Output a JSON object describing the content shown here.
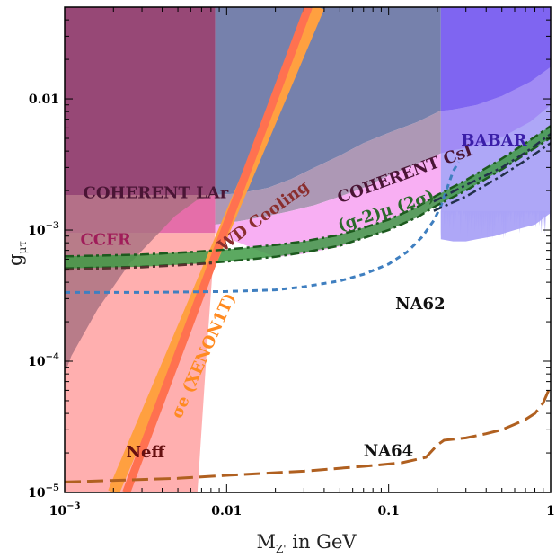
{
  "chart_data": {
    "type": "area",
    "xlabel": "M",
    "xlabel_sub": "Z'",
    "xlabel_suffix": " in GeV",
    "ylabel": "g",
    "ylabel_sub": "μτ",
    "xscale": "log",
    "yscale": "log",
    "xlim": [
      0.001,
      1
    ],
    "ylim": [
      1e-05,
      0.05
    ],
    "x_ticks": [
      {
        "v": 0.001,
        "base": "10",
        "exp": "−3"
      },
      {
        "v": 0.01,
        "text": "0.01"
      },
      {
        "v": 0.1,
        "text": "0.1"
      },
      {
        "v": 1,
        "text": "1"
      }
    ],
    "y_ticks": [
      {
        "v": 1e-05,
        "base": "10",
        "exp": "−5"
      },
      {
        "v": 0.0001,
        "base": "10",
        "exp": "−4"
      },
      {
        "v": 0.001,
        "base": "10",
        "exp": "−3"
      },
      {
        "v": 0.01,
        "text": "0.01"
      }
    ],
    "regions": [
      {
        "name": "COHERENT LAr",
        "color": "#7a1450",
        "opacity": 0.78,
        "points": [
          [
            0.001,
            0.05
          ],
          [
            0.0085,
            0.05
          ],
          [
            0.0085,
            0.00185
          ],
          [
            0.001,
            0.00185
          ]
        ]
      },
      {
        "name": "CCFR",
        "color": "#e0559a",
        "opacity": 0.85,
        "points": [
          [
            0.001,
            0.00185
          ],
          [
            0.0085,
            0.00185
          ],
          [
            0.0085,
            0.00095
          ],
          [
            0.001,
            0.00095
          ]
        ]
      },
      {
        "name": "N_eff",
        "color": "#ff9e9e",
        "opacity": 0.82,
        "points": [
          [
            0.001,
            0.00095
          ],
          [
            0.0085,
            0.00095
          ],
          [
            0.0075,
            0.00011
          ],
          [
            0.0066,
            1e-05
          ],
          [
            0.001,
            1e-05
          ]
        ]
      },
      {
        "name": "WD Cooling",
        "color": "#a87080",
        "opacity": 0.82,
        "points": [
          [
            0.001,
            8e-05
          ],
          [
            0.0011,
            0.00011
          ],
          [
            0.0016,
            0.00025
          ],
          [
            0.0025,
            0.00055
          ],
          [
            0.0035,
            0.00085
          ],
          [
            0.0048,
            0.00128
          ],
          [
            0.0065,
            0.00168
          ],
          [
            0.0085,
            0.00185
          ],
          [
            0.001,
            0.00185
          ]
        ]
      },
      {
        "name": "COHERENT CsI",
        "color": "#6f7aa8",
        "opacity": 0.95,
        "points": [
          [
            0.0085,
            0.05
          ],
          [
            0.21,
            0.05
          ],
          [
            0.21,
            0.00815
          ],
          [
            0.15,
            0.00665
          ],
          [
            0.1,
            0.0055
          ],
          [
            0.07,
            0.0046
          ],
          [
            0.05,
            0.0037
          ],
          [
            0.035,
            0.003
          ],
          [
            0.025,
            0.00245
          ],
          [
            0.018,
            0.0021
          ],
          [
            0.012,
            0.0019
          ],
          [
            0.0085,
            0.00185
          ]
        ]
      },
      {
        "name": "COHERENT CsI band",
        "color": "#9f86a8",
        "opacity": 0.85,
        "points": [
          [
            0.0085,
            0.00185
          ],
          [
            0.012,
            0.0019
          ],
          [
            0.018,
            0.0021
          ],
          [
            0.025,
            0.00245
          ],
          [
            0.035,
            0.003
          ],
          [
            0.05,
            0.0037
          ],
          [
            0.07,
            0.0046
          ],
          [
            0.1,
            0.0055
          ],
          [
            0.15,
            0.00665
          ],
          [
            0.21,
            0.00815
          ],
          [
            0.21,
            0.00385
          ],
          [
            0.15,
            0.0032
          ],
          [
            0.1,
            0.0026
          ],
          [
            0.07,
            0.0021
          ],
          [
            0.05,
            0.0018
          ],
          [
            0.035,
            0.00155
          ],
          [
            0.025,
            0.0014
          ],
          [
            0.018,
            0.00128
          ],
          [
            0.012,
            0.00117
          ],
          [
            0.0085,
            0.0011
          ]
        ]
      },
      {
        "name": "(g-2)μ (2σ) region",
        "color": "#f7a6f2",
        "opacity": 0.9,
        "points": [
          [
            0.0085,
            0.0011
          ],
          [
            0.012,
            0.00117
          ],
          [
            0.018,
            0.00128
          ],
          [
            0.025,
            0.0014
          ],
          [
            0.035,
            0.00155
          ],
          [
            0.05,
            0.0018
          ],
          [
            0.07,
            0.0021
          ],
          [
            0.1,
            0.0026
          ],
          [
            0.15,
            0.0032
          ],
          [
            0.21,
            0.00385
          ],
          [
            0.21,
            0.00162
          ],
          [
            0.15,
            0.00125
          ],
          [
            0.1,
            0.001
          ],
          [
            0.07,
            0.00087
          ],
          [
            0.05,
            0.00075
          ],
          [
            0.03,
            0.00066
          ],
          [
            0.02,
            0.00062
          ],
          [
            0.0085,
            0.00095
          ]
        ]
      },
      {
        "name": "BABAR",
        "color": "#aaa2f7",
        "opacity": 0.95,
        "points": [
          [
            0.21,
            0.05
          ],
          [
            1,
            0.05
          ],
          [
            1,
            0.00135
          ],
          [
            0.8,
            0.0011
          ],
          [
            0.6,
            0.001
          ],
          [
            0.45,
            0.0009
          ],
          [
            0.35,
            0.00085
          ],
          [
            0.3,
            0.00082
          ],
          [
            0.25,
            0.00082
          ],
          [
            0.21,
            0.00085
          ]
        ]
      },
      {
        "name": "BABAR upper band",
        "color": "#7a5ef0",
        "opacity": 0.9,
        "points": [
          [
            0.21,
            0.05
          ],
          [
            1,
            0.05
          ],
          [
            1,
            0.0175
          ],
          [
            0.75,
            0.0135
          ],
          [
            0.5,
            0.0105
          ],
          [
            0.35,
            0.009
          ],
          [
            0.25,
            0.0083
          ],
          [
            0.21,
            0.0081
          ]
        ]
      },
      {
        "name": "BABAR mid band",
        "color": "#9f86f5",
        "opacity": 0.85,
        "points": [
          [
            0.21,
            0.0081
          ],
          [
            0.25,
            0.0083
          ],
          [
            0.35,
            0.009
          ],
          [
            0.5,
            0.0105
          ],
          [
            0.75,
            0.0135
          ],
          [
            1,
            0.0175
          ],
          [
            1,
            0.009
          ],
          [
            0.75,
            0.0067
          ],
          [
            0.5,
            0.0051
          ],
          [
            0.35,
            0.0044
          ],
          [
            0.25,
            0.00405
          ],
          [
            0.21,
            0.00385
          ]
        ]
      },
      {
        "name": "g-2 band",
        "color": "#3f9a45",
        "opacity": 0.85,
        "points": [
          [
            0.001,
            0.00051
          ],
          [
            0.003,
            0.000525
          ],
          [
            0.006,
            0.00055
          ],
          [
            0.01,
            0.000575
          ],
          [
            0.02,
            0.000625
          ],
          [
            0.03,
            0.000675
          ],
          [
            0.05,
            0.00076
          ],
          [
            0.07,
            0.00087
          ],
          [
            0.1,
            0.001
          ],
          [
            0.15,
            0.00125
          ],
          [
            0.2,
            0.00155
          ],
          [
            0.3,
            0.002
          ],
          [
            0.5,
            0.0029
          ],
          [
            0.7,
            0.0038
          ],
          [
            1,
            0.00505
          ],
          [
            1,
            0.0062
          ],
          [
            0.7,
            0.0046
          ],
          [
            0.5,
            0.0035
          ],
          [
            0.3,
            0.0024
          ],
          [
            0.2,
            0.00185
          ],
          [
            0.15,
            0.0015
          ],
          [
            0.1,
            0.0012
          ],
          [
            0.07,
            0.00104
          ],
          [
            0.05,
            0.00092
          ],
          [
            0.03,
            0.00082
          ],
          [
            0.02,
            0.00077
          ],
          [
            0.01,
            0.00071
          ],
          [
            0.006,
            0.00068
          ],
          [
            0.003,
            0.00065
          ],
          [
            0.001,
            0.00063
          ]
        ]
      }
    ],
    "babar_spikes": {
      "x_range": [
        0.21,
        1
      ],
      "y_base": 0.00085,
      "y_top": 0.0014,
      "color": "#aaa2f7"
    },
    "lines": [
      {
        "name": "σe (XENON1T)",
        "color": "#ffa040",
        "width": 13,
        "dash": "",
        "points": [
          [
            0.002,
            1e-05
          ],
          [
            0.037,
            0.05
          ]
        ]
      },
      {
        "name": "WD Cooling edge",
        "color": "#ff7150",
        "width": 9,
        "dash": "",
        "points": [
          [
            0.0024,
            1e-05
          ],
          [
            0.032,
            0.05
          ]
        ]
      },
      {
        "name": "NA62",
        "color": "#3f7fc0",
        "width": 3,
        "dash": "6,5",
        "points": [
          [
            0.001,
            0.000335
          ],
          [
            0.003,
            0.000335
          ],
          [
            0.01,
            0.00034
          ],
          [
            0.02,
            0.00035
          ],
          [
            0.03,
            0.00037
          ],
          [
            0.05,
            0.00041
          ],
          [
            0.07,
            0.00046
          ],
          [
            0.1,
            0.00055
          ],
          [
            0.13,
            0.00068
          ],
          [
            0.16,
            0.00088
          ],
          [
            0.19,
            0.00118
          ],
          [
            0.21,
            0.00152
          ],
          [
            0.23,
            0.0021
          ],
          [
            0.25,
            0.0028
          ],
          [
            0.27,
            0.0033
          ]
        ]
      },
      {
        "name": "NA64",
        "color": "#b06020",
        "width": 3,
        "dash": "18,7",
        "points": [
          [
            0.001,
            1.2e-05
          ],
          [
            0.005,
            1.28e-05
          ],
          [
            0.01,
            1.35e-05
          ],
          [
            0.03,
            1.45e-05
          ],
          [
            0.07,
            1.58e-05
          ],
          [
            0.12,
            1.68e-05
          ],
          [
            0.17,
            1.85e-05
          ],
          [
            0.2,
            2.3e-05
          ],
          [
            0.22,
            2.5e-05
          ],
          [
            0.3,
            2.6e-05
          ],
          [
            0.4,
            2.8e-05
          ],
          [
            0.5,
            3e-05
          ],
          [
            0.6,
            3.3e-05
          ],
          [
            0.7,
            3.6e-05
          ],
          [
            0.8,
            4e-05
          ],
          [
            0.9,
            4.8e-05
          ],
          [
            1,
            6.5e-05
          ]
        ]
      },
      {
        "name": "g-2 lower edge",
        "color": "#1c5a1e",
        "width": 2.5,
        "dash": "10,4,3,4",
        "points": [
          [
            0.001,
            0.00051
          ],
          [
            0.003,
            0.000525
          ],
          [
            0.006,
            0.00055
          ],
          [
            0.01,
            0.000575
          ],
          [
            0.02,
            0.000625
          ],
          [
            0.03,
            0.000675
          ],
          [
            0.05,
            0.00076
          ],
          [
            0.07,
            0.00087
          ],
          [
            0.1,
            0.001
          ],
          [
            0.15,
            0.00125
          ],
          [
            0.2,
            0.00155
          ],
          [
            0.3,
            0.002
          ],
          [
            0.5,
            0.0029
          ],
          [
            0.7,
            0.0038
          ],
          [
            1,
            0.00505
          ]
        ]
      },
      {
        "name": "g-2 upper edge",
        "color": "#1c5a1e",
        "width": 2.5,
        "dash": "10,4,3,4",
        "points": [
          [
            0.001,
            0.00063
          ],
          [
            0.003,
            0.00065
          ],
          [
            0.006,
            0.00068
          ],
          [
            0.01,
            0.00071
          ],
          [
            0.02,
            0.00077
          ],
          [
            0.03,
            0.00082
          ],
          [
            0.05,
            0.00092
          ],
          [
            0.07,
            0.00104
          ],
          [
            0.1,
            0.0012
          ],
          [
            0.15,
            0.0015
          ],
          [
            0.2,
            0.00185
          ],
          [
            0.3,
            0.0024
          ],
          [
            0.5,
            0.0035
          ],
          [
            0.7,
            0.0046
          ],
          [
            1,
            0.0062
          ]
        ]
      },
      {
        "name": "left dash-dot 1",
        "color": "#5a3030",
        "width": 2.5,
        "dash": "10,4,3,4",
        "points": [
          [
            0.001,
            0.0005
          ],
          [
            0.003,
            0.00052
          ],
          [
            0.0085,
            0.00056
          ]
        ]
      },
      {
        "name": "BABAR dash-dot upper",
        "color": "#22304a",
        "width": 2.5,
        "dash": "10,4,3,4",
        "points": [
          [
            0.19,
            0.00165
          ],
          [
            0.3,
            0.0022
          ],
          [
            0.5,
            0.003
          ],
          [
            0.7,
            0.0039
          ],
          [
            1,
            0.0054
          ]
        ]
      },
      {
        "name": "BABAR dash-dot lower",
        "color": "#22304a",
        "width": 2.5,
        "dash": "10,4,3,4",
        "points": [
          [
            0.19,
            0.0014
          ],
          [
            0.3,
            0.0018
          ],
          [
            0.5,
            0.0026
          ],
          [
            0.7,
            0.0034
          ],
          [
            1,
            0.0046
          ]
        ]
      }
    ],
    "labels": [
      {
        "text": "COHERENT LAr",
        "color": "#4a1535",
        "x": 0.0013,
        "y": 0.00175,
        "rotate": 0
      },
      {
        "text": "CCFR",
        "color": "#a01d5a",
        "x": 0.00125,
        "y": 0.00077,
        "rotate": 0
      },
      {
        "text": "WD Cooling",
        "color": "#8a2e2e",
        "x": 0.0095,
        "y": 0.00068,
        "rotate": -36
      },
      {
        "text": "COHERENT CsI",
        "color": "#4a1535",
        "x": 0.05,
        "y": 0.0016,
        "rotate": -20
      },
      {
        "text": "BABAR",
        "color": "#3a1ea8",
        "x": 0.28,
        "y": 0.0044,
        "rotate": 0
      },
      {
        "text": "NA62",
        "color": "#111111",
        "x": 0.11,
        "y": 0.00025,
        "rotate": 0
      },
      {
        "text": "NA64",
        "color": "#111111",
        "x": 0.07,
        "y": 1.9e-05,
        "rotate": 0
      },
      {
        "text": "(g-2)μ (2σ)",
        "color": "#2a6a2a",
        "x": 0.05,
        "y": 0.00098,
        "rotate": -18
      },
      {
        "text": "σe (XENON1T)",
        "color": "#ff8a20",
        "x": 0.0052,
        "y": 3.6e-05,
        "rotate": -66
      },
      {
        "text": "Neff",
        "color": "#661010",
        "x": 0.0024,
        "y": 1.85e-05,
        "rotate": 0
      }
    ]
  }
}
